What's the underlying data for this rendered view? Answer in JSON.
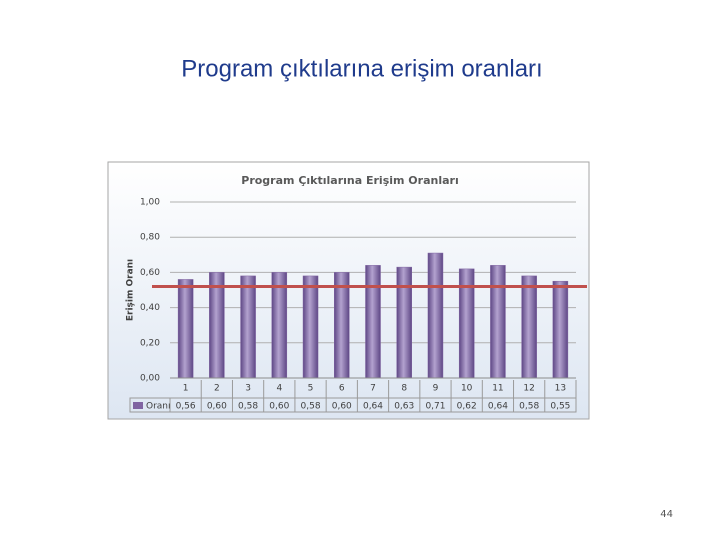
{
  "title": "Program çıktılarına erişim oranları",
  "page_number": "44",
  "chart_data": {
    "type": "bar",
    "title": "Program Çıktılarına Erişim Oranları",
    "y_label": "Erişim Oranı",
    "categories": [
      "1",
      "2",
      "3",
      "4",
      "5",
      "6",
      "7",
      "8",
      "9",
      "10",
      "11",
      "12",
      "13"
    ],
    "series": [
      {
        "name": "Oranı",
        "color": "#8064a2",
        "values": [
          0.56,
          0.6,
          0.58,
          0.6,
          0.58,
          0.6,
          0.64,
          0.63,
          0.71,
          0.62,
          0.64,
          0.58,
          0.55
        ],
        "value_labels": [
          "0,56",
          "0,60",
          "0,58",
          "0,60",
          "0,58",
          "0,60",
          "0,64",
          "0,63",
          "0,71",
          "0,62",
          "0,64",
          "0,58",
          "0,55"
        ]
      }
    ],
    "ylim": [
      0,
      1
    ],
    "yticks": [
      {
        "value": 0,
        "label": "0,00"
      },
      {
        "value": 0.2,
        "label": "0,20"
      },
      {
        "value": 0.4,
        "label": "0,40"
      },
      {
        "value": 0.6,
        "label": "0,60"
      },
      {
        "value": 0.8,
        "label": "0,80"
      },
      {
        "value": 1,
        "label": "1,00"
      }
    ],
    "grid": true,
    "reference_line": {
      "value": 0.52,
      "color": "#c0504d"
    }
  }
}
